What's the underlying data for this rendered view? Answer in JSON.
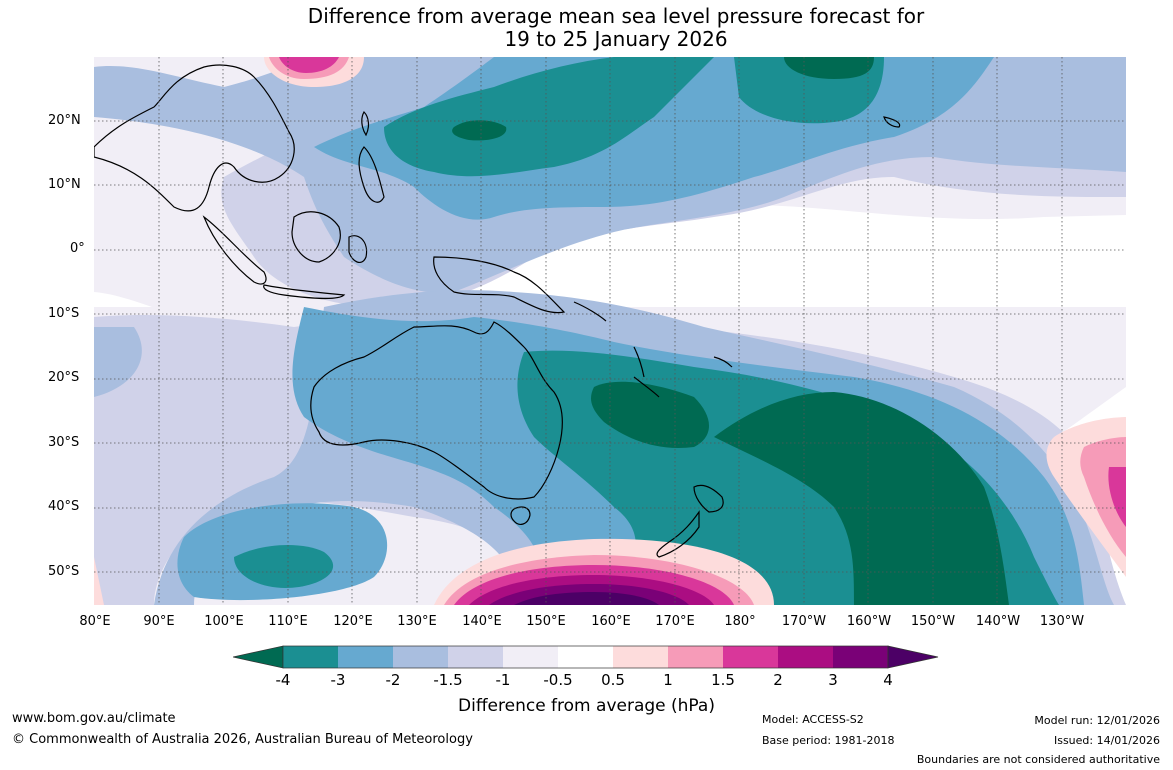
{
  "title": {
    "line1": "Difference from average mean sea level pressure forecast for",
    "line2": "19 to 25 January 2026"
  },
  "axes": {
    "lat_labels": [
      "20°N",
      "10°N",
      "0°",
      "10°S",
      "20°S",
      "30°S",
      "40°S",
      "50°S"
    ],
    "lon_labels": [
      "80°E",
      "90°E",
      "100°E",
      "110°E",
      "120°E",
      "130°E",
      "140°E",
      "150°E",
      "160°E",
      "170°E",
      "180°",
      "170°W",
      "160°W",
      "150°W",
      "140°W",
      "130°W"
    ],
    "grid": true
  },
  "colorbar": {
    "label": "Difference from average (hPa)",
    "ticks": [
      "-4",
      "-3",
      "-2",
      "-1.5",
      "-1",
      "-0.5",
      "0.5",
      "1",
      "1.5",
      "2",
      "3",
      "4"
    ],
    "colors": [
      "#006a52",
      "#1b8f92",
      "#66a9d0",
      "#a9bedf",
      "#d0d2e9",
      "#f1eef6",
      "#ffffff",
      "#fddcdc",
      "#f69bb8",
      "#d9379a",
      "#ab0d82",
      "#7a0177",
      "#4c0066"
    ]
  },
  "footer": {
    "site": "www.bom.gov.au/climate",
    "copyright": "© Commonwealth of Australia 2026, Australian Bureau of Meteorology",
    "model": "Model: ACCESS-S2",
    "base_period": "Base period: 1981-2018",
    "model_run": "Model run: 12/01/2026",
    "issued": "Issued: 14/01/2026",
    "boundaries": "Boundaries are not considered authoritative"
  }
}
